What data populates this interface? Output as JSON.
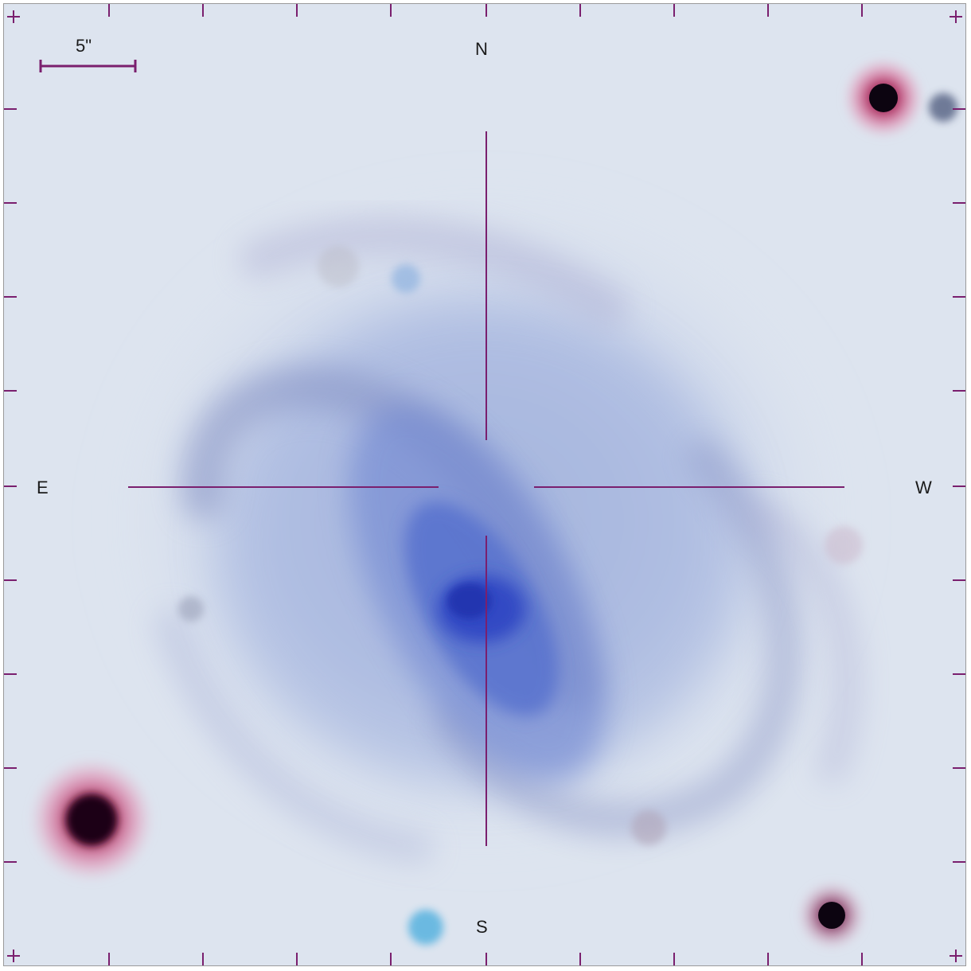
{
  "scale_bar": {
    "label": "5\""
  },
  "compass": {
    "north": "N",
    "south": "S",
    "east": "E",
    "west": "W"
  },
  "colors": {
    "sky_background": "#dde4ef",
    "galaxy_disk": "#a9b8de",
    "galaxy_core": "#2a3fc0",
    "overlay_lines": "#7a1f6e",
    "foreground_star": "#12061a",
    "star_halo": "#d63a7a"
  },
  "image_content": {
    "subject": "spiral galaxy",
    "objects": [
      "galaxy-core",
      "spiral-arm",
      "bright-star",
      "faint-source"
    ]
  }
}
